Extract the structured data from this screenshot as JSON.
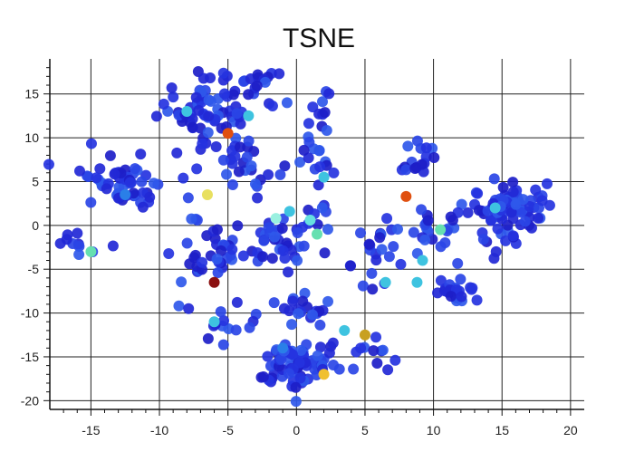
{
  "chart_data": {
    "type": "scatter",
    "title": "TSNE",
    "xlabel": "",
    "ylabel": "",
    "xlim": [
      -18,
      21
    ],
    "ylim": [
      -21,
      19
    ],
    "grid": true,
    "x_ticks": [
      -15,
      -10,
      -5,
      0,
      5,
      10,
      15,
      20
    ],
    "y_ticks": [
      15,
      10,
      5,
      0,
      -5,
      -10,
      -15,
      -20
    ],
    "colormap": [
      "#1a1acd",
      "#2340e6",
      "#2a7fe8",
      "#3ec3e0",
      "#66e0b0",
      "#c8d84a",
      "#f0a020",
      "#e05010",
      "#8b1010"
    ],
    "point_color": "#2530d8",
    "clusters": [
      {
        "cx": -6.5,
        "cy": 13.5,
        "sx": 1.8,
        "sy": 2.0,
        "n": 70
      },
      {
        "cx": -2.5,
        "cy": 16.0,
        "sx": 0.9,
        "sy": 0.9,
        "n": 12
      },
      {
        "cx": 1.5,
        "cy": 13.0,
        "sx": 0.7,
        "sy": 1.2,
        "n": 10
      },
      {
        "cx": -12.5,
        "cy": 5.0,
        "sx": 1.6,
        "sy": 1.7,
        "n": 55
      },
      {
        "cx": -4.0,
        "cy": 7.5,
        "sx": 1.4,
        "sy": 1.8,
        "n": 30
      },
      {
        "cx": 1.5,
        "cy": 7.5,
        "sx": 0.7,
        "sy": 1.2,
        "n": 14
      },
      {
        "cx": 9.0,
        "cy": 7.5,
        "sx": 0.9,
        "sy": 1.4,
        "n": 16
      },
      {
        "cx": 15.0,
        "cy": 1.5,
        "sx": 1.5,
        "sy": 2.0,
        "n": 85
      },
      {
        "cx": -16.0,
        "cy": -2.0,
        "sx": 0.8,
        "sy": 0.9,
        "n": 10
      },
      {
        "cx": -7.0,
        "cy": -3.5,
        "sx": 1.5,
        "sy": 2.0,
        "n": 35
      },
      {
        "cx": -1.5,
        "cy": -2.0,
        "sx": 1.5,
        "sy": 1.5,
        "n": 40
      },
      {
        "cx": 1.5,
        "cy": 1.0,
        "sx": 0.8,
        "sy": 0.8,
        "n": 8
      },
      {
        "cx": 6.0,
        "cy": -3.5,
        "sx": 1.0,
        "sy": 1.8,
        "n": 20
      },
      {
        "cx": 9.5,
        "cy": 0.5,
        "sx": 1.2,
        "sy": 1.6,
        "n": 20
      },
      {
        "cx": 11.5,
        "cy": -7.5,
        "sx": 1.0,
        "sy": 1.0,
        "n": 25
      },
      {
        "cx": -5.5,
        "cy": -11.5,
        "sx": 1.0,
        "sy": 1.2,
        "n": 12
      },
      {
        "cx": 0.0,
        "cy": -9.5,
        "sx": 1.5,
        "sy": 0.9,
        "n": 20
      },
      {
        "cx": 0.0,
        "cy": -16.0,
        "sx": 1.5,
        "sy": 1.4,
        "n": 75
      },
      {
        "cx": 5.5,
        "cy": -13.5,
        "sx": 0.8,
        "sy": 1.2,
        "n": 10
      }
    ],
    "highlight_points": [
      {
        "x": -5.0,
        "y": 10.5,
        "c": "#e05010"
      },
      {
        "x": -6.5,
        "y": 3.5,
        "c": "#e8e060"
      },
      {
        "x": -3.5,
        "y": 12.5,
        "c": "#3ec3e0"
      },
      {
        "x": -8.0,
        "y": 13.0,
        "c": "#3ec3e0"
      },
      {
        "x": -15.0,
        "y": -3.0,
        "c": "#66e0b0"
      },
      {
        "x": -6.0,
        "y": -6.5,
        "c": "#8b1010"
      },
      {
        "x": 8.0,
        "y": 3.3,
        "c": "#e05010"
      },
      {
        "x": 5.0,
        "y": -12.5,
        "c": "#c8a020"
      },
      {
        "x": 2.0,
        "y": -17.0,
        "c": "#f0c030"
      },
      {
        "x": 1.5,
        "y": -1.0,
        "c": "#66e0b0"
      },
      {
        "x": 1.0,
        "y": 0.6,
        "c": "#66e0e0"
      },
      {
        "x": -1.5,
        "y": 0.8,
        "c": "#9af0e0"
      },
      {
        "x": -0.5,
        "y": 1.6,
        "c": "#3ec3e0"
      },
      {
        "x": 9.2,
        "y": -4.0,
        "c": "#3ec3e0"
      },
      {
        "x": 8.8,
        "y": -6.5,
        "c": "#3ec3e0"
      },
      {
        "x": 10.5,
        "y": -0.5,
        "c": "#66e0b0"
      },
      {
        "x": 14.5,
        "y": 2.0,
        "c": "#3ec3e0"
      },
      {
        "x": 2.0,
        "y": 5.5,
        "c": "#3ec3e0"
      },
      {
        "x": 3.5,
        "y": -12.0,
        "c": "#3ec3e0"
      },
      {
        "x": -6.0,
        "y": -11.0,
        "c": "#3ec3e0"
      },
      {
        "x": 6.5,
        "y": -6.5,
        "c": "#3ec3e0"
      },
      {
        "x": -1.0,
        "y": -14.0,
        "c": "#2a7fe8"
      },
      {
        "x": -12.5,
        "y": 3.5,
        "c": "#2a7fe8"
      }
    ]
  }
}
